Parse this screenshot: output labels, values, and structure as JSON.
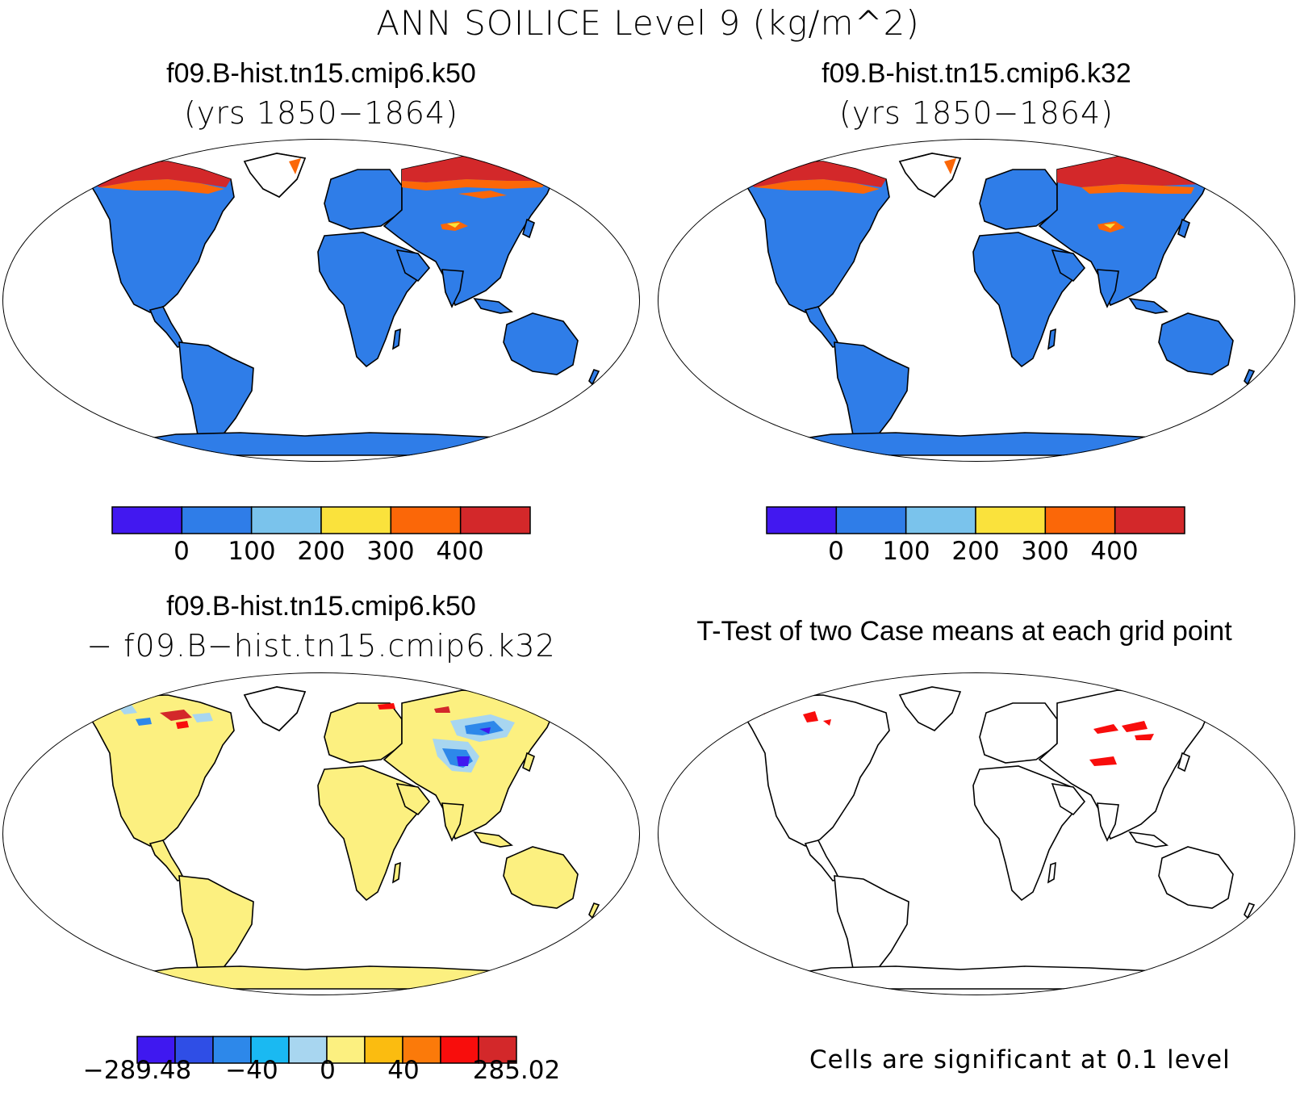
{
  "title": "ANN SOILICE Level 9 (kg/m^2)",
  "panels": [
    {
      "id": "case1",
      "title": "f09.B-hist.tn15.cmip6.k50",
      "subtitle": "(yrs 1850−1864)"
    },
    {
      "id": "case2",
      "title": "f09.B-hist.tn15.cmip6.k32",
      "subtitle": "(yrs 1850−1864)"
    },
    {
      "id": "diff",
      "title": "f09.B-hist.tn15.cmip6.k50",
      "subtitle": "− f09.B−hist.tn15.cmip6.k32"
    },
    {
      "id": "ttest",
      "title": "T-Test of two Case means at each grid point",
      "subtitle": ""
    }
  ],
  "colorbar_case": {
    "colors": [
      "#4218f0",
      "#2f7de8",
      "#7ac3ec",
      "#fae23c",
      "#fb6708",
      "#d3282a"
    ],
    "tick_labels": [
      "0",
      "100",
      "200",
      "300",
      "400"
    ]
  },
  "colorbar_diff": {
    "colors": [
      "#3f18f0",
      "#2f4ee6",
      "#2d88ea",
      "#1ab9f2",
      "#a8d6f0",
      "#fcf080",
      "#fbbc10",
      "#fb7a0a",
      "#f80d0c",
      "#d3282a"
    ],
    "tick_labels": [
      "−289.48",
      "−40",
      "0",
      "40",
      "285.02"
    ]
  },
  "significance_note": "Cells are significant at 0.1 level",
  "map_colors": {
    "land_case": "#2f7de8",
    "land_diff": "#fcf080",
    "cold_high": "#d3282a",
    "cold_mid": "#fb6708",
    "cold_low": "#fae23c",
    "diff_neg": "#2d88ea",
    "diff_neg_light": "#a8d6f0",
    "diff_neg_strong": "#3f18f0",
    "significant": "#f80d0c"
  }
}
